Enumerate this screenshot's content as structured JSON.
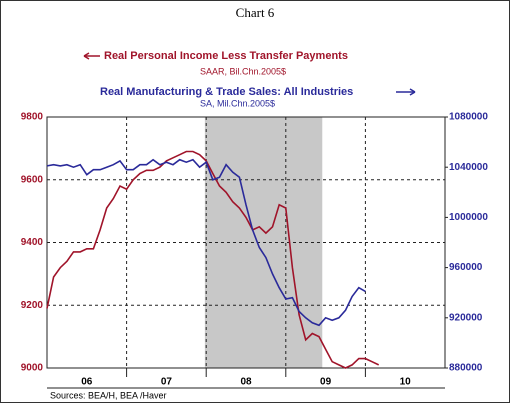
{
  "chart_data": {
    "type": "line",
    "title": "Chart 6",
    "xlim": [
      0,
      60
    ],
    "xticks": [
      {
        "value": 6,
        "label": "06"
      },
      {
        "value": 18,
        "label": "07"
      },
      {
        "value": 30,
        "label": "08"
      },
      {
        "value": 42,
        "label": "09"
      },
      {
        "value": 54,
        "label": "10"
      }
    ],
    "xgrid": [
      12,
      24,
      36,
      48
    ],
    "shading": [
      23.8,
      41.5
    ],
    "ylim": [
      9000,
      9800
    ],
    "yticks": [
      9000,
      9200,
      9400,
      9600,
      9800
    ],
    "y2lim": [
      880000,
      1080000
    ],
    "y2ticks": [
      880000,
      920000,
      960000,
      1000000,
      1040000,
      1080000
    ],
    "grid": true,
    "source": "Sources:  BEA/H, BEA /Haver",
    "series": [
      {
        "name": "Real Personal Income Less Transfer Payments",
        "subtitle": "SAAR, Bil.Chn.2005$",
        "color": "#a0142a",
        "axis": "y",
        "x": [
          0,
          1,
          2,
          3,
          4,
          5,
          6,
          7,
          8,
          9,
          10,
          11,
          12,
          13,
          14,
          15,
          16,
          17,
          18,
          19,
          20,
          21,
          22,
          23,
          24,
          25,
          26,
          27,
          28,
          29,
          30,
          31,
          32,
          33,
          34,
          35,
          36,
          37,
          38,
          39,
          40,
          41,
          42,
          43,
          44,
          45,
          46,
          47,
          48,
          49,
          50
        ],
        "values": [
          9190,
          9290,
          9320,
          9340,
          9370,
          9370,
          9380,
          9380,
          9440,
          9510,
          9540,
          9580,
          9570,
          9600,
          9620,
          9630,
          9630,
          9640,
          9660,
          9670,
          9680,
          9690,
          9690,
          9680,
          9660,
          9620,
          9580,
          9560,
          9530,
          9510,
          9480,
          9440,
          9450,
          9430,
          9450,
          9520,
          9510,
          9320,
          9170,
          9090,
          9110,
          9100,
          9060,
          9020,
          9010,
          9000,
          9010,
          9030,
          9030,
          9020,
          9010
        ]
      },
      {
        "name": "Real Manufacturing & Trade Sales: All Industries",
        "subtitle": "SA, Mil.Chn.2005$",
        "color": "#2a2a9a",
        "axis": "y2",
        "x": [
          0,
          1,
          2,
          3,
          4,
          5,
          6,
          7,
          8,
          9,
          10,
          11,
          12,
          13,
          14,
          15,
          16,
          17,
          18,
          19,
          20,
          21,
          22,
          23,
          24,
          25,
          26,
          27,
          28,
          29,
          30,
          31,
          32,
          33,
          34,
          35,
          36,
          37,
          38,
          39,
          40,
          41,
          42,
          43,
          44,
          45,
          46,
          47,
          48
        ],
        "values": [
          1041000,
          1042000,
          1041000,
          1042000,
          1040000,
          1042000,
          1034000,
          1038000,
          1038000,
          1040000,
          1042000,
          1045000,
          1038000,
          1038000,
          1042000,
          1042000,
          1046000,
          1042000,
          1044000,
          1042000,
          1046000,
          1044000,
          1046000,
          1040000,
          1044000,
          1030000,
          1032000,
          1042000,
          1036000,
          1032000,
          1010000,
          990000,
          976000,
          968000,
          955000,
          944000,
          935000,
          936000,
          925000,
          920000,
          916000,
          914000,
          920000,
          918000,
          920000,
          926000,
          937000,
          944000,
          941000
        ]
      }
    ]
  }
}
